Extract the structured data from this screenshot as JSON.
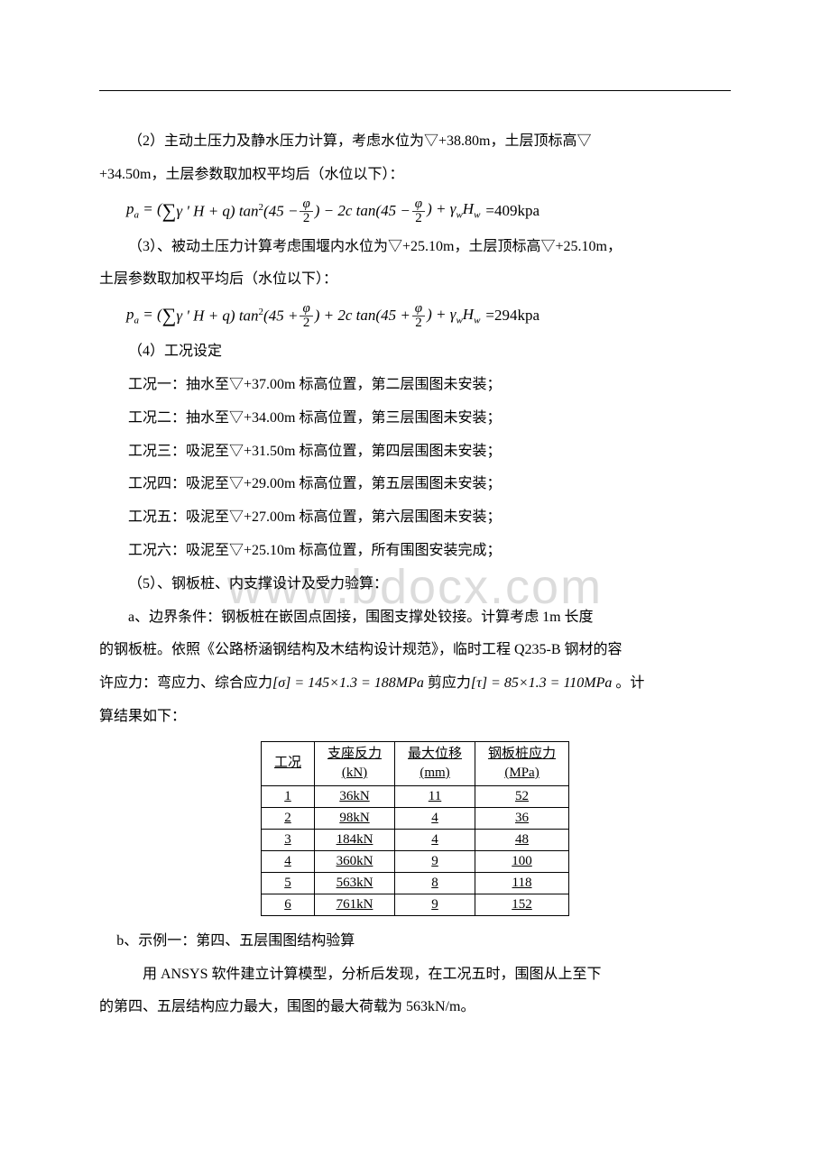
{
  "paragraphs": {
    "p1_a": "（2）主动土压力及静水压力计算，考虑水位为▽+38.80m，土层顶标高▽",
    "p1_b": "+34.50m，土层参数取加权平均后（水位以下）：",
    "p2_a": "（3）、被动土压力计算考虑围堰内水位为▽+25.10m，土层顶标高▽+25.10m，",
    "p2_b": "土层参数取加权平均后（水位以下）：",
    "p3": "（4）工况设定",
    "p4": "工况一：抽水至▽+37.00m 标高位置，第二层围图未安装；",
    "p5": "工况二：抽水至▽+34.00m 标高位置，第三层围图未安装；",
    "p6": "工况三：吸泥至▽+31.50m 标高位置，第四层围图未安装；",
    "p7": "工况四：吸泥至▽+29.00m 标高位置，第五层围图未安装；",
    "p8": "工况五：吸泥至▽+27.00m 标高位置，第六层围图未安装；",
    "p9": "工况六：吸泥至▽+25.10m 标高位置，所有围图安装完成；",
    "p10": "（5）、钢板桩、内支撑设计及受力验算：",
    "p11_a": "a、边界条件：钢板桩在嵌固点固接，围图支撑处铰接。计算考虑 1m 长度",
    "p11_b": "的钢板桩。依照《公路桥涵钢结构及木结构设计规范》，临时工程 Q235-B 钢材的容",
    "p11_c_pre": "许应力：弯应力、综合应力",
    "p11_c_mid": " 剪应力",
    "p11_c_end": " 。计",
    "p11_d": "算结果如下：",
    "p12": "b、示例一：第四、五层围图结构验算",
    "p13_a": "用 ANSYS 软件建立计算模型，分析后发现，在工况五时，围图从上至下",
    "p13_b": "的第四、五层结构应力最大，围图的最大荷载为 563kN/m。"
  },
  "formula": {
    "f1_result": "=409kpa",
    "f2_result": "=294kpa",
    "sigma": "[σ] = 145×1.3 = 188MPa",
    "tau": "[τ] = 85×1.3 = 110MPa"
  },
  "table": {
    "headers": {
      "c1": "工况",
      "c2a": "支座反力",
      "c2b": "(kN)",
      "c3a": "最大位移",
      "c3b": "(mm)",
      "c4a": "钢板桩应力",
      "c4b": "(MPa)"
    },
    "rows": [
      {
        "c1": "1",
        "c2": "36kN",
        "c3": "11",
        "c4": "52"
      },
      {
        "c1": "2",
        "c2": "98kN",
        "c3": "4",
        "c4": "36"
      },
      {
        "c1": "3",
        "c2": "184kN",
        "c3": "4",
        "c4": "48"
      },
      {
        "c1": "4",
        "c2": "360kN",
        "c3": "9",
        "c4": "100"
      },
      {
        "c1": "5",
        "c2": "563kN",
        "c3": "8",
        "c4": "118"
      },
      {
        "c1": "6",
        "c2": "761kN",
        "c3": "9",
        "c4": "152"
      }
    ]
  },
  "watermark": "www.bdocx.com"
}
